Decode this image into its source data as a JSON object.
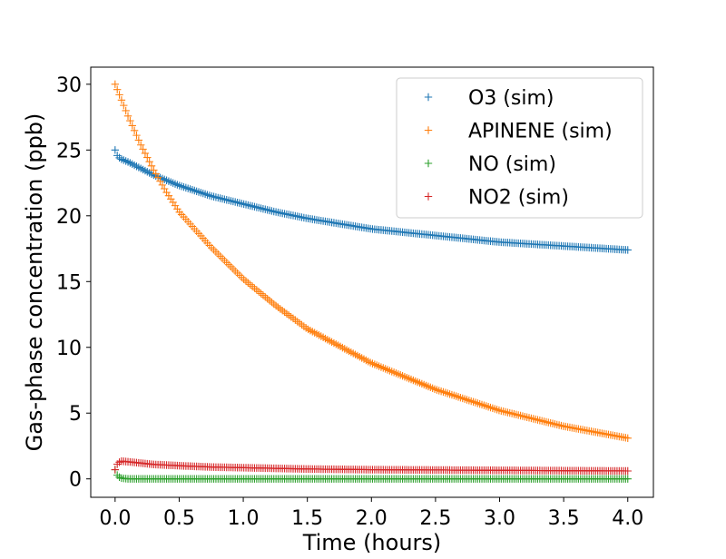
{
  "chart_data": {
    "type": "scatter",
    "title": "",
    "xlabel": "Time (hours)",
    "ylabel": "Gas-phase concentration (ppb)",
    "xlim": [
      -0.19,
      4.2
    ],
    "ylim": [
      -1.4,
      31.3
    ],
    "xticks": [
      0.0,
      0.5,
      1.0,
      1.5,
      2.0,
      2.5,
      3.0,
      3.5,
      4.0
    ],
    "xtick_labels": [
      "0.0",
      "0.5",
      "1.0",
      "1.5",
      "2.0",
      "2.5",
      "3.0",
      "3.5",
      "4.0"
    ],
    "yticks": [
      0,
      5,
      10,
      15,
      20,
      25,
      30
    ],
    "ytick_labels": [
      "0",
      "5",
      "10",
      "15",
      "20",
      "25",
      "30"
    ],
    "grid": false,
    "legend_position": "upper right",
    "marker": "plus",
    "x_range": [
      0.0,
      4.0
    ],
    "points_per_series": 240,
    "series": [
      {
        "name": "O3 (sim)",
        "color": "#1f77b4",
        "x": [
          0,
          0.02,
          0.05,
          0.1,
          0.2,
          0.3,
          0.4,
          0.5,
          0.75,
          1.0,
          1.25,
          1.5,
          2.0,
          2.5,
          3.0,
          3.5,
          4.0
        ],
        "values": [
          25.0,
          24.5,
          24.3,
          24.1,
          23.6,
          23.1,
          22.7,
          22.3,
          21.5,
          20.9,
          20.3,
          19.8,
          19.0,
          18.5,
          18.0,
          17.7,
          17.4
        ]
      },
      {
        "name": "APINENE (sim)",
        "color": "#ff7f0e",
        "x": [
          0,
          0.1,
          0.2,
          0.3,
          0.4,
          0.5,
          0.75,
          1.0,
          1.25,
          1.5,
          2.0,
          2.5,
          3.0,
          3.5,
          4.0
        ],
        "values": [
          30.0,
          27.6,
          25.4,
          23.5,
          21.8,
          20.3,
          17.6,
          15.2,
          13.2,
          11.4,
          8.8,
          6.8,
          5.2,
          4.0,
          3.1
        ]
      },
      {
        "name": "NO (sim)",
        "color": "#2ca02c",
        "x": [
          0,
          0.02,
          0.05,
          0.1,
          0.5,
          1.0,
          2.0,
          3.0,
          4.0
        ],
        "values": [
          0.7,
          0.2,
          0.05,
          0.0,
          0.0,
          0.0,
          0.0,
          0.0,
          0.0
        ]
      },
      {
        "name": "NO2 (sim)",
        "color": "#d62728",
        "x": [
          0,
          0.02,
          0.05,
          0.1,
          0.2,
          0.3,
          0.5,
          0.75,
          1.0,
          1.5,
          2.0,
          3.0,
          4.0
        ],
        "values": [
          0.7,
          1.2,
          1.35,
          1.3,
          1.2,
          1.1,
          1.0,
          0.9,
          0.85,
          0.75,
          0.7,
          0.65,
          0.6
        ]
      }
    ]
  }
}
